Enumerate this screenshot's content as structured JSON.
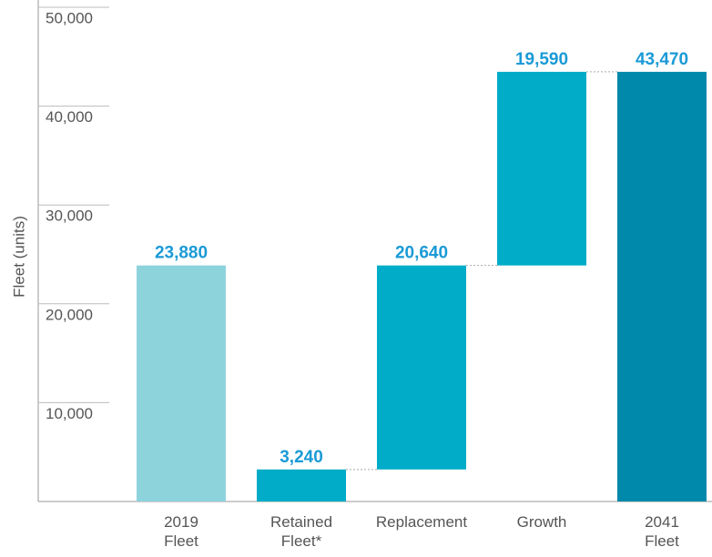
{
  "chart_data": {
    "type": "waterfall",
    "y_label": "Fleet (units)",
    "categories": [
      "2019\nFleet",
      "Retained\nFleet*",
      "Replacement",
      "Growth",
      "2041\nFleet"
    ],
    "values": [
      23880,
      3240,
      20640,
      19590,
      43470
    ],
    "measure": [
      "total",
      "absolute",
      "relative",
      "relative",
      "total"
    ],
    "colors": [
      "#8dd3dc",
      "#00acc8",
      "#00acc8",
      "#00acc8",
      "#0089ab"
    ],
    "label_color": "#1a9ad6",
    "ylim": [
      0,
      50000
    ],
    "yticks": [
      {
        "value": 10000,
        "label": "10,000"
      },
      {
        "value": 20000,
        "label": "20,000"
      },
      {
        "value": 30000,
        "label": "30,000"
      },
      {
        "value": 40000,
        "label": "40,000"
      },
      {
        "value": 50000,
        "label": "50,000"
      }
    ],
    "value_labels": [
      "23,880",
      "3,240",
      "20,640",
      "19,590",
      "43,470"
    ]
  }
}
